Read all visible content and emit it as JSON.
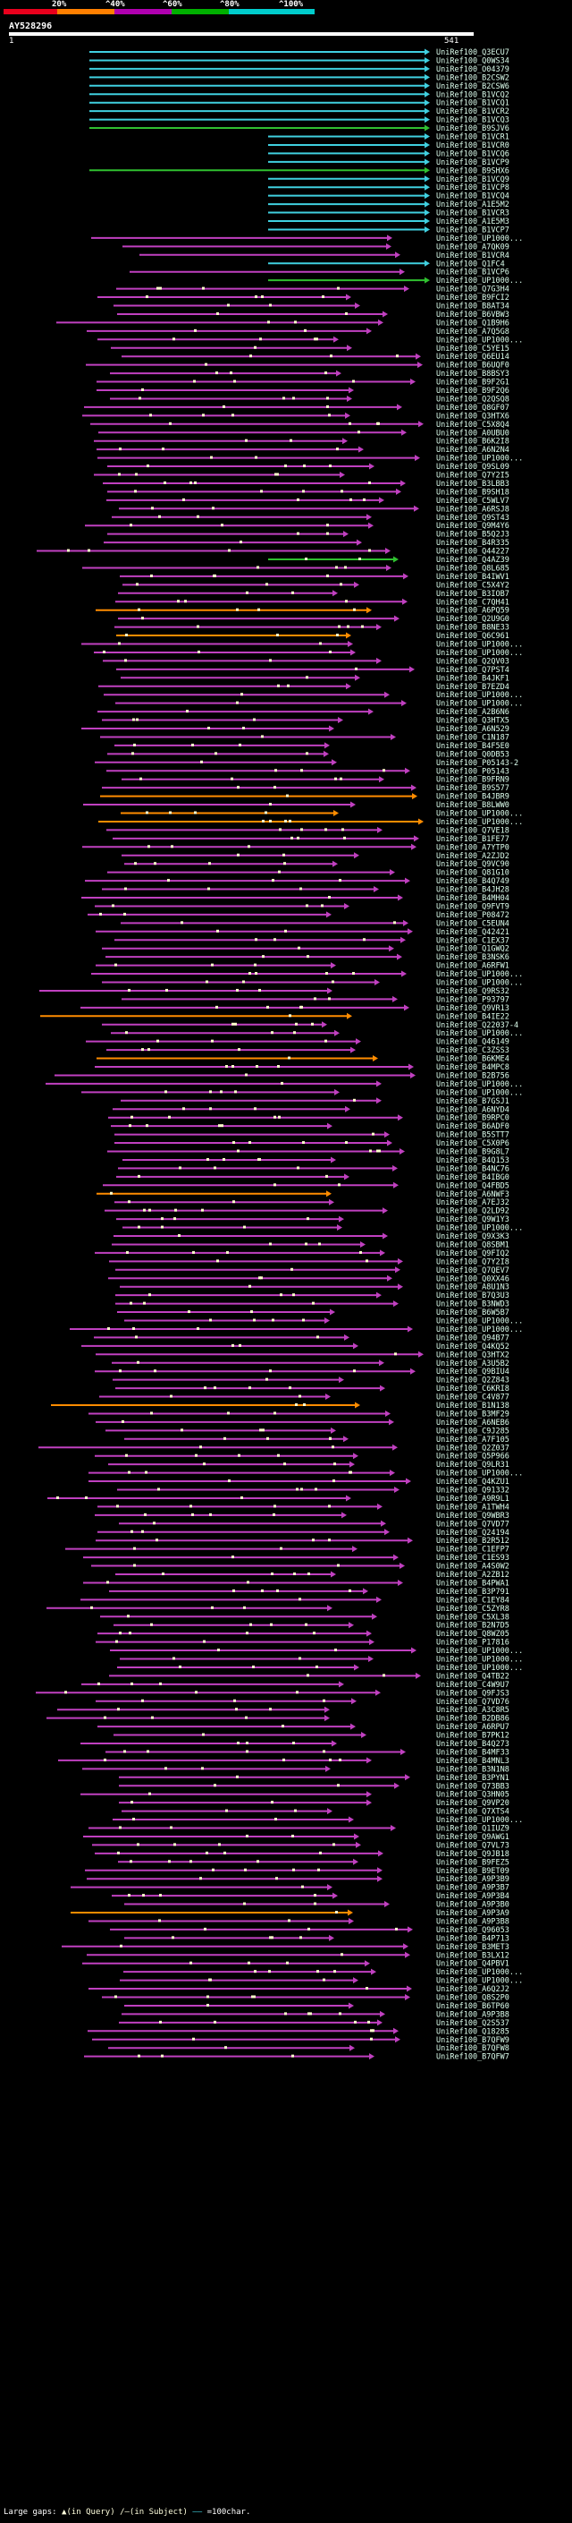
{
  "query": {
    "id": "AY528296",
    "start": "1",
    "end": "541"
  },
  "legend": {
    "labels": [
      "20%",
      "^40%",
      "^60%",
      "^80%",
      "^100%"
    ],
    "colors": [
      "#e8001c",
      "#ff7f00",
      "#b000b0",
      "#00b000",
      "#00cccc"
    ]
  },
  "colors": {
    "magenta": "#c040c0",
    "cyan": "#40d0e0",
    "green": "#30c030",
    "orange": "#ff8c00",
    "gap": "#ffffcc"
  },
  "hits": [
    "UniRef100_Q3ECU7",
    "UniRef100_Q0WS34",
    "UniRef100_O04379",
    "UniRef100_B2CSW2",
    "UniRef100_B2CSW6",
    "UniRef100_B1VCQ2",
    "UniRef100_B1VCQ1",
    "UniRef100_B1VCR2",
    "UniRef100_B1VCQ3",
    "UniRef100_B9SJV6",
    "UniRef100_B1VCR1",
    "UniRef100_B1VCR0",
    "UniRef100_B1VCQ6",
    "UniRef100_B1VCP9",
    "UniRef100_B9SHX6",
    "UniRef100_B1VCQ9",
    "UniRef100_B1VCP8",
    "UniRef100_B1VCQ4",
    "UniRef100_A1E5M2",
    "UniRef100_B1VCR3",
    "UniRef100_A1E5M3",
    "UniRef100_B1VCP7",
    "UniRef100_UP1000...",
    "UniRef100_A7QK09",
    "UniRef100_B1VCR4",
    "UniRef100_Q1FC4",
    "UniRef100_B1VCP6",
    "UniRef100_UP1000...",
    "UniRef100_Q7G3H4",
    "UniRef100_B9FCI2",
    "UniRef100_B8AT34",
    "UniRef100_B6VBW3",
    "UniRef100_Q1B9H6",
    "UniRef100_A7Q5G8",
    "UniRef100_UP1000...",
    "UniRef100_C5YE15",
    "UniRef100_Q6EU14",
    "UniRef100_B6UQF0",
    "UniRef100_B8BSY3",
    "UniRef100_B9F2G1",
    "UniRef100_B9F2Q6",
    "UniRef100_Q2QSQ8",
    "UniRef100_Q8GF07",
    "UniRef100_Q3HTX6",
    "UniRef100_C5X8Q4",
    "UniRef100_A0UBU0",
    "UniRef100_B6K2I8",
    "UniRef100_A6N2N4",
    "UniRef100_UP1000...",
    "UniRef100_Q9SL09",
    "UniRef100_Q7Y2I5",
    "UniRef100_B3LBB3",
    "UniRef100_B9SH18",
    "UniRef100_C5WLV7",
    "UniRef100_A6RSJ8",
    "UniRef100_Q9ST43",
    "UniRef100_Q9M4Y6",
    "UniRef100_B5Q2J3",
    "UniRef100_B4R335",
    "UniRef100_Q44227",
    "UniRef100_Q4AZ39",
    "UniRef100_Q8L685",
    "UniRef100_B4IWV1",
    "UniRef100_C5X4Y2",
    "UniRef100_B3IOB7",
    "UniRef100_C7QH41",
    "UniRef100_A6PQ59",
    "UniRef100_Q2U9G0",
    "UniRef100_B8NE33",
    "UniRef100_Q6C961",
    "UniRef100_UP1000...",
    "UniRef100_UP1000...",
    "UniRef100_Q2QV03",
    "UniRef100_Q7PST4",
    "UniRef100_B4JKF1",
    "UniRef100_B7EZD4",
    "UniRef100_UP1000...",
    "UniRef100_UP1000...",
    "UniRef100_A2B6N6",
    "UniRef100_Q3HTX5",
    "UniRef100_A6N529",
    "UniRef100_C1N187",
    "UniRef100_B4F5E0",
    "UniRef100_Q0DB53",
    "UniRef100_P05143-2",
    "UniRef100_P05143",
    "UniRef100_B9FRN9",
    "UniRef100_B9S577",
    "UniRef100_B4JBR9",
    "UniRef100_B8LWW0",
    "UniRef100_UP1000...",
    "UniRef100_UP1000...",
    "UniRef100_Q7VE18",
    "UniRef100_B1FE77",
    "UniRef100_A7YTP0",
    "UniRef100_A2ZJD2",
    "UniRef100_Q9VC90",
    "UniRef100_Q81G10",
    "UniRef100_B4Q749",
    "UniRef100_B4JH28",
    "UniRef100_B4MH04",
    "UniRef100_Q9FVT9",
    "UniRef100_P08472",
    "UniRef100_C5EUN4",
    "UniRef100_Q42421",
    "UniRef100_C1EX37",
    "UniRef100_Q1GWQ2",
    "UniRef100_B3NSK6",
    "UniRef100_A6RFW1",
    "UniRef100_UP1000...",
    "UniRef100_UP1000...",
    "UniRef100_Q9RS32",
    "UniRef100_P93797",
    "UniRef100_Q9VR13",
    "UniRef100_B4IE22",
    "UniRef100_Q22037-4",
    "UniRef100_UP1000...",
    "UniRef100_Q46149",
    "UniRef100_C3ZSS3",
    "UniRef100_B6KME4",
    "UniRef100_B4MPC8",
    "UniRef100_B2B756",
    "UniRef100_UP1000...",
    "UniRef100_UP1000...",
    "UniRef100_B7GSJ1",
    "UniRef100_A6NYD4",
    "UniRef100_B9RPC0",
    "UniRef100_B6ADF0",
    "UniRef100_B5STT7",
    "UniRef100_C5X0P6",
    "UniRef100_B9G8L7",
    "UniRef100_B4Q153",
    "UniRef100_B4NC76",
    "UniRef100_B4IBG0",
    "UniRef100_Q4FBD5",
    "UniRef100_A6NWF3",
    "UniRef100_A7EJ32",
    "UniRef100_Q2LD92",
    "UniRef100_Q9W1Y3",
    "UniRef100_UP1000...",
    "UniRef100_Q9X3K3",
    "UniRef100_Q8SBM1",
    "UniRef100_Q9FIQ2",
    "UniRef100_Q7Y2I8",
    "UniRef100_Q7QEV7",
    "UniRef100_Q0XX46",
    "UniRef100_A8U1N3",
    "UniRef100_B7Q3U3",
    "UniRef100_B3NWD3",
    "UniRef100_B6W5B7",
    "UniRef100_UP1000...",
    "UniRef100_UP1000...",
    "UniRef100_Q94B77",
    "UniRef100_Q4KQ52",
    "UniRef100_Q3HTX2",
    "UniRef100_A3U5B2",
    "UniRef100_Q9BIU4",
    "UniRef100_Q2Z843",
    "UniRef100_C6KRI8",
    "UniRef100_C4V877",
    "UniRef100_B1N138",
    "UniRef100_B3MF29",
    "UniRef100_A6NEB6",
    "UniRef100_C9J285",
    "UniRef100_A7F105",
    "UniRef100_Q2Z037",
    "UniRef100_Q5P966",
    "UniRef100_Q9LR31",
    "UniRef100_UP1000...",
    "UniRef100_Q4KZU1",
    "UniRef100_Q91332",
    "UniRef100_A9R9L1",
    "UniRef100_A1TWH4",
    "UniRef100_Q9WBR3",
    "UniRef100_Q7VD77",
    "UniRef100_Q24194",
    "UniRef100_B2R512",
    "UniRef100_C1EFP7",
    "UniRef100_C1ES93",
    "UniRef100_A4S0W2",
    "UniRef100_A2ZB12",
    "UniRef100_B4PWA1",
    "UniRef100_B3P791",
    "UniRef100_C1EY84",
    "UniRef100_C5ZYR8",
    "UniRef100_C5XL38",
    "UniRef100_B2N7D5",
    "UniRef100_Q8WZ05",
    "UniRef100_P17816",
    "UniRef100_UP1000...",
    "UniRef100_UP1000...",
    "UniRef100_UP1000...",
    "UniRef100_Q4TB22",
    "UniRef100_C4W9U7",
    "UniRef100_Q9FJS3",
    "UniRef100_Q7VD76",
    "UniRef100_A3C8R5",
    "UniRef100_B2DB86",
    "UniRef100_A6RPU7",
    "UniRef100_B7PK12",
    "UniRef100_B4Q273",
    "UniRef100_B4MF33",
    "UniRef100_B4MNL3",
    "UniRef100_B3N1N8",
    "UniRef100_B3PYN1",
    "UniRef100_Q73BB3",
    "UniRef100_Q3HN05",
    "UniRef100_Q9VP20",
    "UniRef100_Q7XTS4",
    "UniRef100_UP1000...",
    "UniRef100_Q1IUZ9",
    "UniRef100_Q9AWG1",
    "UniRef100_Q7VL73",
    "UniRef100_Q9JB18",
    "UniRef100_B9FEZ5",
    "UniRef100_B9ET09",
    "UniRef100_A9P3B9",
    "UniRef100_A9P3B7",
    "UniRef100_A9P3B4",
    "UniRef100_A9P3B0",
    "UniRef100_A9P3A9",
    "UniRef100_A9P3B8",
    "UniRef100_Q96053",
    "UniRef100_B4P713",
    "UniRef100_B3MET3",
    "UniRef100_B3LX12",
    "UniRef100_Q4PBV1",
    "UniRef100_UP1000...",
    "UniRef100_UP1000...",
    "UniRef100_A6Q2J2",
    "UniRef100_Q8S2P0",
    "UniRef100_B6TP60",
    "UniRef100_A9P3B8",
    "UniRef100_Q2S537",
    "UniRef100_Q18285",
    "UniRef100_B7QFW9",
    "UniRef100_B7QFW8",
    "UniRef100_B7QFW7"
  ],
  "footer": {
    "large_gaps_label": "Large gaps:",
    "in_query": "▲(in Query)",
    "in_subject": "/—(in Subject)",
    "scale": "=100char."
  }
}
